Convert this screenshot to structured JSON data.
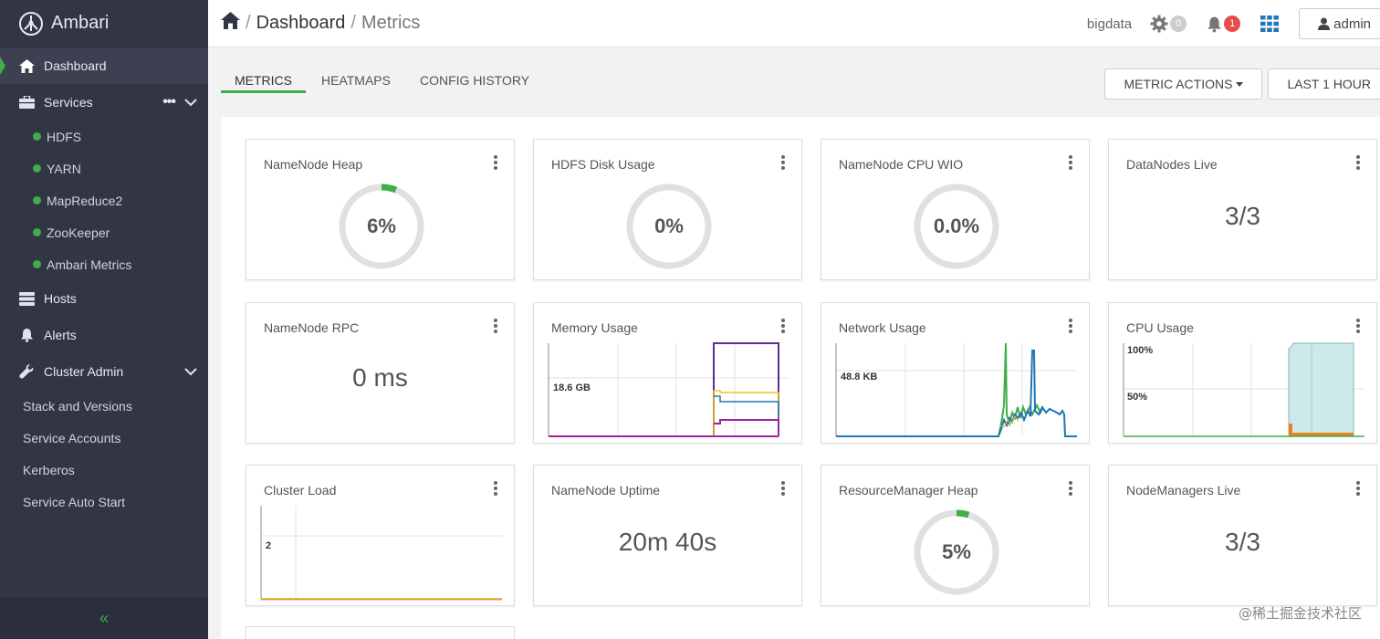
{
  "app": {
    "name": "Ambari"
  },
  "sidebar": {
    "items": [
      {
        "label": "Dashboard"
      },
      {
        "label": "Services"
      },
      {
        "label": "Hosts"
      },
      {
        "label": "Alerts"
      },
      {
        "label": "Cluster Admin"
      }
    ],
    "services": [
      "HDFS",
      "YARN",
      "MapReduce2",
      "ZooKeeper",
      "Ambari Metrics"
    ],
    "admin_items": [
      "Stack and Versions",
      "Service Accounts",
      "Kerberos",
      "Service Auto Start"
    ],
    "collapse_glyph": "«"
  },
  "header": {
    "breadcrumb": [
      "Dashboard",
      "Metrics"
    ],
    "cluster_name": "bigdata",
    "ops_count": "0",
    "alerts_count": "1",
    "user": "admin"
  },
  "tabs": [
    "METRICS",
    "HEATMAPS",
    "CONFIG HISTORY"
  ],
  "actions": {
    "metric_actions": "METRIC ACTIONS",
    "time_range": "LAST 1 HOUR"
  },
  "widgets": {
    "namenode_heap": {
      "title": "NameNode Heap",
      "value": "6%",
      "percent": 6
    },
    "hdfs_disk": {
      "title": "HDFS Disk Usage",
      "value": "0%",
      "percent": 0
    },
    "namenode_cpu": {
      "title": "NameNode CPU WIO",
      "value": "0.0%",
      "percent": 0
    },
    "datanodes_live": {
      "title": "DataNodes Live",
      "value": "3/3"
    },
    "namenode_rpc": {
      "title": "NameNode RPC",
      "value": "0 ms"
    },
    "memory_usage": {
      "title": "Memory Usage",
      "label": "18.6 GB"
    },
    "network_usage": {
      "title": "Network Usage",
      "label": "48.8 KB"
    },
    "cpu_usage": {
      "title": "CPU Usage",
      "label_top": "100%",
      "label_mid": "50%"
    },
    "cluster_load": {
      "title": "Cluster Load",
      "label": "2"
    },
    "namenode_uptime": {
      "title": "NameNode Uptime",
      "value": "20m 40s"
    },
    "rm_heap": {
      "title": "ResourceManager Heap",
      "value": "5%",
      "percent": 5
    },
    "nodemanagers_live": {
      "title": "NodeManagers Live",
      "value": "3/3"
    }
  },
  "colors": {
    "green": "#3fae49",
    "sidebar_bg": "#323544",
    "accent_blue": "#1f77b4"
  },
  "watermark": "@稀土掘金技术社区"
}
